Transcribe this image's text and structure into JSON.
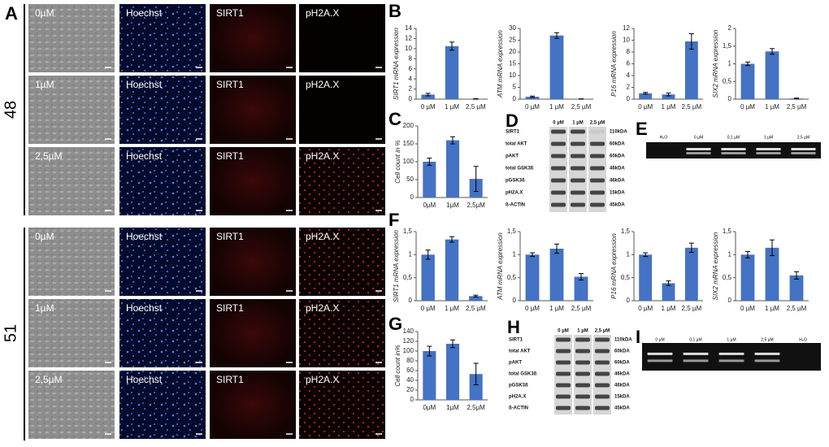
{
  "panel_labels": [
    "A",
    "B",
    "C",
    "D",
    "E",
    "F",
    "G",
    "H",
    "I"
  ],
  "microscopy": {
    "groups": [
      {
        "label": "48",
        "rows": [
          [
            "0µM",
            "Hoechst",
            "SIRT1",
            "pH2A.X"
          ],
          [
            "1µM",
            "Hoechst",
            "SIRT1",
            "pH2A.X"
          ],
          [
            "2,5µM",
            "Hoechst",
            "SIRT1",
            "pH2A.X"
          ]
        ]
      },
      {
        "label": "51",
        "rows": [
          [
            "0µM",
            "Hoechst",
            "SIRT1",
            "pH2A.X"
          ],
          [
            "1µM",
            "Hoechst",
            "SIRT1",
            "pH2A.X"
          ],
          [
            "2,5µM",
            "Hoechst",
            "SIRT1",
            "pH2A.X"
          ]
        ]
      }
    ]
  },
  "chart_data": [
    {
      "type": "bar",
      "y_label": "SIRT1 mRNA expression",
      "categories": [
        "0 µM",
        "1 µM",
        "2,5 µM"
      ],
      "values": [
        0.9,
        10.5,
        0.05
      ],
      "errors": [
        0.25,
        0.8,
        0.05
      ],
      "color": "#4472c4",
      "ylim": [
        0,
        14
      ],
      "yticks": [
        0,
        2,
        4,
        6,
        8,
        10,
        12,
        14
      ]
    },
    {
      "type": "bar",
      "y_label": "ATM mRNA expression",
      "categories": [
        "0 µM",
        "1 µM",
        "2,5 µM"
      ],
      "values": [
        1,
        27,
        0.1
      ],
      "errors": [
        0.3,
        1.2,
        0.05
      ],
      "color": "#4472c4",
      "ylim": [
        0,
        30
      ],
      "yticks": [
        0,
        5,
        10,
        15,
        20,
        25,
        30
      ]
    },
    {
      "type": "bar",
      "y_label": "P16 mRNA expression",
      "categories": [
        "0 µM",
        "1 µM",
        "2,5 µM"
      ],
      "values": [
        1,
        0.8,
        9.8
      ],
      "errors": [
        0.15,
        0.25,
        1.3
      ],
      "color": "#4472c4",
      "ylim": [
        0,
        12
      ],
      "yticks": [
        0,
        2,
        4,
        6,
        8,
        10,
        12
      ]
    },
    {
      "type": "bar",
      "y_label": "SIX2 mRNA expression",
      "categories": [
        "0 µM",
        "1 µM",
        "2,5 µM"
      ],
      "values": [
        1,
        1.35,
        0.02
      ],
      "errors": [
        0.05,
        0.08,
        0.01
      ],
      "color": "#4472c4",
      "ylim": [
        0,
        2
      ],
      "yticks": [
        0,
        {
          "value": 0.5,
          "label": "0,5"
        },
        1,
        {
          "value": 1.5,
          "label": "1,5"
        },
        2
      ]
    },
    {
      "type": "bar",
      "y_label": "Cell count in %",
      "categories": [
        "0µM",
        "1µM",
        "2,5µM"
      ],
      "values": [
        100,
        160,
        52
      ],
      "errors": [
        10,
        10,
        35
      ],
      "color": "#4472c4",
      "ylim": [
        0,
        200
      ],
      "yticks": [
        0,
        50,
        100,
        150,
        200
      ]
    },
    {
      "type": "bar",
      "y_label": "SIRT1 mRNA expression",
      "categories": [
        "0 µM",
        "1 µM",
        "2,5 µM"
      ],
      "values": [
        1,
        1.33,
        0.1
      ],
      "errors": [
        0.1,
        0.06,
        0.02
      ],
      "color": "#4472c4",
      "ylim": [
        0,
        1.5
      ],
      "yticks": [
        0,
        {
          "value": 0.5,
          "label": "0,5"
        },
        1,
        {
          "value": 1.5,
          "label": "1,5"
        }
      ]
    },
    {
      "type": "bar",
      "y_label": "ATM mRNA expression",
      "categories": [
        "0 µM",
        "1 µM",
        "2,5 µM"
      ],
      "values": [
        1,
        1.13,
        0.52
      ],
      "errors": [
        0.04,
        0.1,
        0.07
      ],
      "color": "#4472c4",
      "ylim": [
        0,
        1.5
      ],
      "yticks": [
        0,
        {
          "value": 0.5,
          "label": "0,5"
        },
        1,
        {
          "value": 1.5,
          "label": "1,5"
        }
      ]
    },
    {
      "type": "bar",
      "y_label": "P16 mRNA expression",
      "categories": [
        "0 µM",
        "1 µM",
        "2,5 µM"
      ],
      "values": [
        1,
        0.38,
        1.15
      ],
      "errors": [
        0.04,
        0.05,
        0.1
      ],
      "color": "#4472c4",
      "ylim": [
        0,
        1.5
      ],
      "yticks": [
        0,
        {
          "value": 0.5,
          "label": "0,5"
        },
        1,
        {
          "value": 1.5,
          "label": "1,5"
        }
      ]
    },
    {
      "type": "bar",
      "y_label": "SIX2 mRNA expression",
      "categories": [
        "0 µM",
        "1 µM",
        "2,5 µM"
      ],
      "values": [
        1,
        1.15,
        0.55
      ],
      "errors": [
        0.07,
        0.17,
        0.08
      ],
      "color": "#4472c4",
      "ylim": [
        0,
        1.5
      ],
      "yticks": [
        0,
        {
          "value": 0.5,
          "label": "0,5"
        },
        1,
        {
          "value": 1.5,
          "label": "1,5"
        }
      ]
    },
    {
      "type": "bar",
      "y_label": "Cell count in%",
      "categories": [
        "0µM",
        "1µM",
        "2,5µM"
      ],
      "values": [
        100,
        115,
        53
      ],
      "errors": [
        10,
        8,
        22
      ],
      "color": "#4472c4",
      "ylim": [
        0,
        140
      ],
      "yticks": [
        0,
        20,
        40,
        60,
        80,
        100,
        120,
        140
      ]
    }
  ],
  "blots": [
    {
      "lanes": [
        "0 µM",
        "1 µM",
        "2,5 µM"
      ],
      "rows": [
        {
          "label": "SIRT1",
          "size": "110kDA"
        },
        {
          "label": "total AKT",
          "size": "60kDA"
        },
        {
          "label": "pAKT",
          "size": "60kDA"
        },
        {
          "label": "total GSK3ß",
          "size": "46kDA"
        },
        {
          "label": "pGSK3ß",
          "size": "46kDA"
        },
        {
          "label": "pH2A.X",
          "size": "15kDA"
        },
        {
          "label": "ß-ACTIN",
          "size": "45kDA"
        }
      ]
    },
    {
      "lanes": [
        "0 µM",
        "1 µM",
        "2,5 µM"
      ],
      "rows": [
        {
          "label": "SIRT1",
          "size": "110kDA"
        },
        {
          "label": "total AKT",
          "size": "60kDA"
        },
        {
          "label": "pAKT",
          "size": "60kDA"
        },
        {
          "label": "total GSK3ß",
          "size": "46kDA"
        },
        {
          "label": "pGSK3ß",
          "size": "46kDA"
        },
        {
          "label": "pH2A.X",
          "size": "15kDA"
        },
        {
          "label": "ß-ACTIN",
          "size": "45kDA"
        }
      ]
    }
  ],
  "gels": [
    {
      "lanes": [
        "H₂O",
        "0 µM",
        "0,1 µM",
        "1 µM",
        "2,5 µM"
      ]
    },
    {
      "lanes": [
        "0 µM",
        "0,1 µM",
        "1 µM",
        "2,5 µM",
        "H₂O"
      ]
    }
  ]
}
